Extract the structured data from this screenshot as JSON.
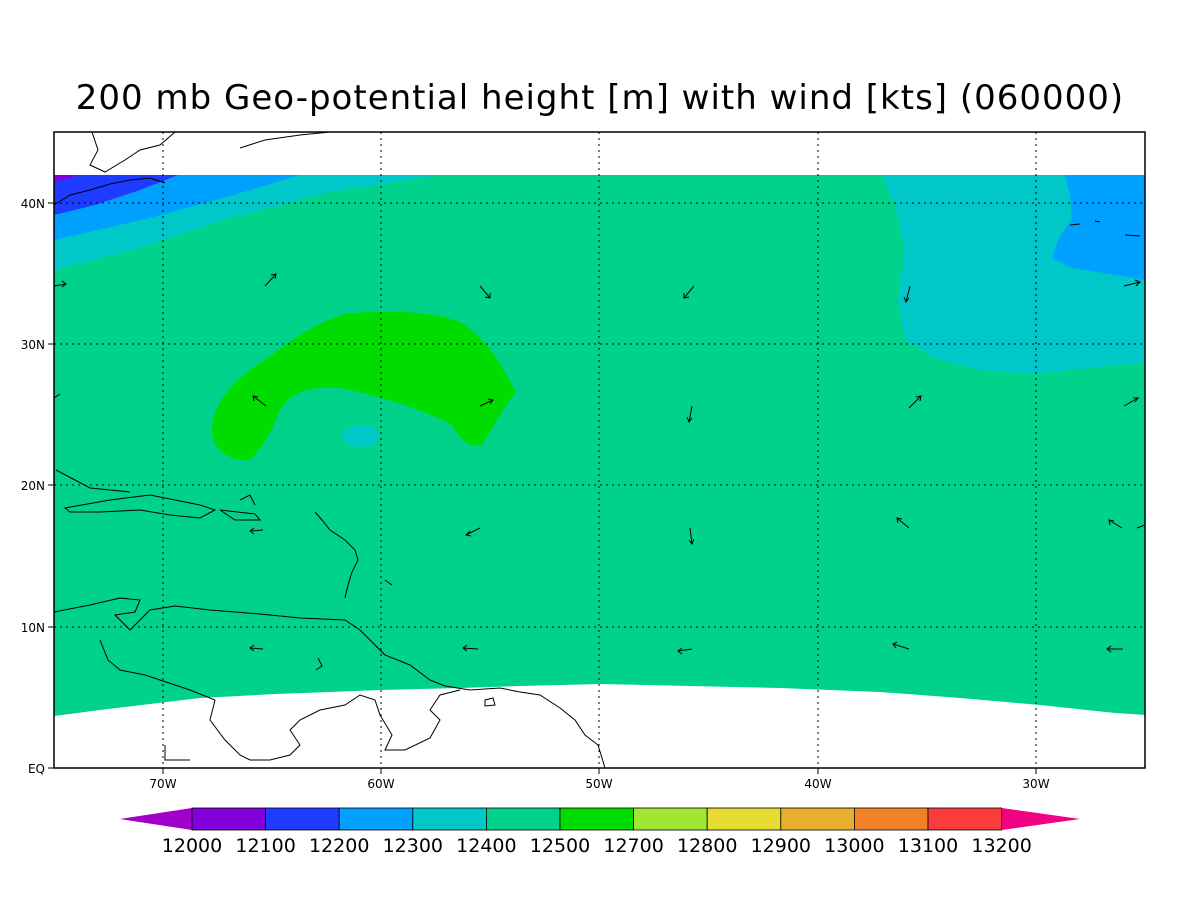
{
  "title": "200 mb Geo-potential height [m] with wind [kts] (060000)",
  "lat_labels": [
    "40N",
    "30N",
    "20N",
    "10N",
    "EQ"
  ],
  "lon_labels": [
    "70W",
    "60W",
    "50W",
    "40W",
    "30W"
  ],
  "colorbar": {
    "labels": [
      "12000",
      "12100",
      "12200",
      "12300",
      "12400",
      "12500",
      "12700",
      "12800",
      "12900",
      "13000",
      "13100",
      "13200"
    ],
    "colors": [
      "#a000c8",
      "#8200dc",
      "#1e3cff",
      "#00a0ff",
      "#00c8c8",
      "#00d28c",
      "#00dc00",
      "#a0e632",
      "#e6dc32",
      "#e6af2d",
      "#f08228",
      "#fa3c3c",
      "#f00082"
    ]
  },
  "colors": {
    "base_field": "#00d28c",
    "band_12300": "#00a0ff",
    "band_12400": "#00c8c8",
    "band_12200": "#1e3cff",
    "band_12700": "#00dc00"
  }
}
